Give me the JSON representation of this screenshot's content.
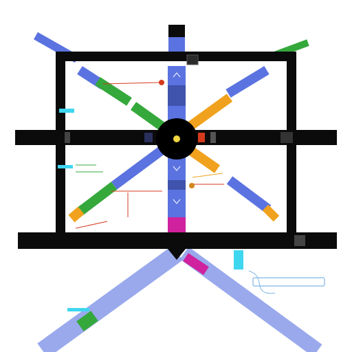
{
  "labels": {
    "top_left_tag": "",
    "top_right_tag": "",
    "top_center_caption": "",
    "top_tick": "",
    "upper_note_1": "",
    "upper_note_2": "",
    "upper_note_3": "",
    "upper_right_note_1": "",
    "upper_right_note_2": "",
    "upper_right_note_3": "",
    "mid_left_bar_label": "",
    "mid_right_bar_label": "",
    "mid_right_sub": "",
    "center_left_note_1": "",
    "center_left_note_2": "",
    "center_right_note_1": "",
    "center_right_note_2": "",
    "lower_left_note_1": "",
    "lower_left_note_2": "",
    "lower_right_note_1": "",
    "lower_right_note_2": "",
    "lower_right_note_3": "",
    "left_edge_label": "",
    "right_edge_label_1": "",
    "right_edge_label_2": "",
    "bottom_left_bar_label": "",
    "bottom_right_bar_label": "",
    "scale_label": "",
    "bottom_center_caption": "",
    "bottom_right_tag": "",
    "bottom_left_tag": ""
  },
  "colors": {
    "frame": "#0b0b0b",
    "blue": "#5b73e0",
    "blue_light": "#8ea0ea",
    "green": "#35a83c",
    "orange": "#f0a21e",
    "magenta": "#d0229e",
    "cyan": "#3fd6ef",
    "red_marker": "#d53a1c",
    "hub": "#000000",
    "hub_center": "#f0d640"
  }
}
